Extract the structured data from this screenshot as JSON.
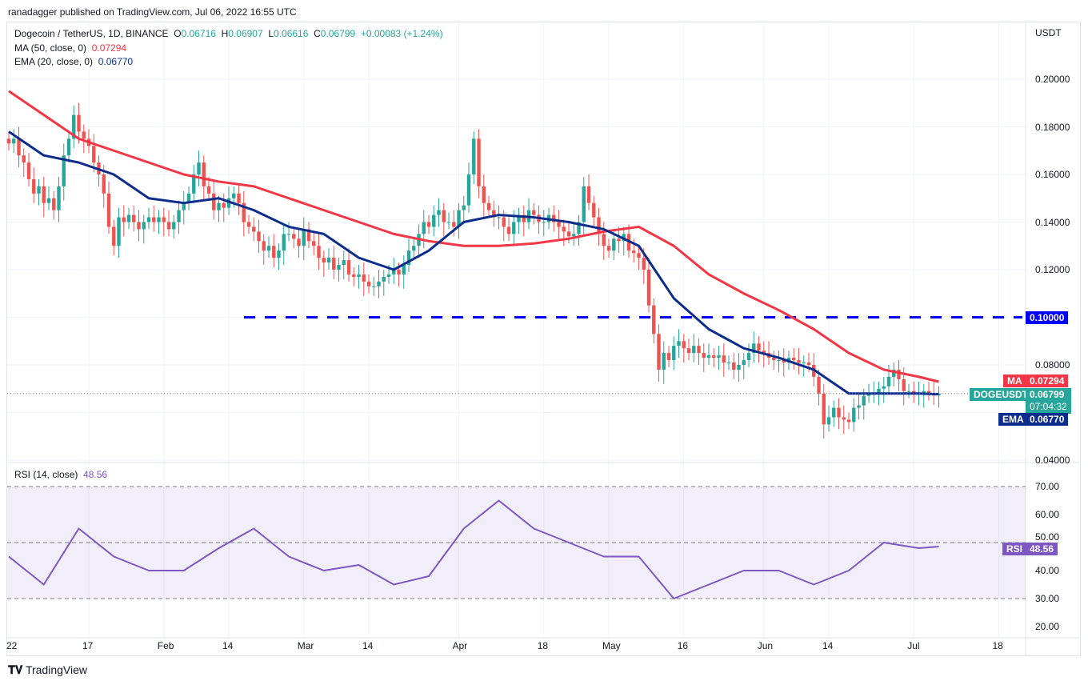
{
  "header": {
    "published": "ranadagger published on TradingView.com, Jul 06, 2022 16:55 UTC"
  },
  "legend": {
    "symbol": "Dogecoin / TetherUS, 1D, BINANCE",
    "o_label": "O",
    "o": "0.06716",
    "h_label": "H",
    "h": "0.06907",
    "l_label": "L",
    "l": "0.06616",
    "c_label": "C",
    "c": "0.06799",
    "change": "+0.00083 (+1.24%)",
    "ma_label": "MA (50, close, 0)",
    "ma_value": "0.07294",
    "ema_label": "EMA (20, close, 0)",
    "ema_value": "0.06770",
    "rsi_label": "RSI (14, close)",
    "rsi_value": "48.56"
  },
  "price_axis": {
    "currency": "USDT",
    "ticks": [
      "0.20000",
      "0.18000",
      "0.16000",
      "0.14000",
      "0.12000",
      "0.10000",
      "0.08000",
      "0.04000"
    ]
  },
  "right_labels": {
    "level": "0.10000",
    "ma_tag": "MA",
    "ma": "0.07294",
    "symbol_tag": "DOGEUSDT",
    "price": "0.06799",
    "countdown": "07:04:32",
    "ema_tag": "EMA",
    "ema": "0.06770",
    "rsi_tag": "RSI",
    "rsi": "48.56"
  },
  "rsi_axis": {
    "ticks": [
      "70.00",
      "60.00",
      "50.00",
      "40.00",
      "30.00",
      "20.00"
    ]
  },
  "time_axis": {
    "labels": [
      "22",
      "17",
      "Feb",
      "14",
      "Mar",
      "14",
      "Apr",
      "18",
      "May",
      "16",
      "Jun",
      "14",
      "Jul",
      "18"
    ]
  },
  "footer": {
    "brand": "TradingView"
  },
  "colors": {
    "up": "#26a69a",
    "down": "#ef5350",
    "ma": "#f23645",
    "ema": "#0d2d8c",
    "level": "#0000ff",
    "rsi": "#7e57c2"
  },
  "chart_data": {
    "type": "candlestick",
    "title": "Dogecoin / TetherUS, 1D, BINANCE",
    "x_start": "2022-01-01",
    "x_step": "1D",
    "ylim": [
      0.04,
      0.21
    ],
    "level_line": 0.1,
    "close": [
      0.173,
      0.175,
      0.168,
      0.165,
      0.158,
      0.152,
      0.155,
      0.148,
      0.15,
      0.145,
      0.155,
      0.168,
      0.175,
      0.185,
      0.178,
      0.175,
      0.172,
      0.165,
      0.16,
      0.152,
      0.138,
      0.13,
      0.142,
      0.14,
      0.143,
      0.14,
      0.137,
      0.14,
      0.142,
      0.14,
      0.142,
      0.14,
      0.137,
      0.14,
      0.145,
      0.148,
      0.152,
      0.16,
      0.165,
      0.155,
      0.152,
      0.145,
      0.148,
      0.146,
      0.15,
      0.152,
      0.148,
      0.14,
      0.138,
      0.136,
      0.132,
      0.128,
      0.13,
      0.125,
      0.128,
      0.135,
      0.135,
      0.133,
      0.13,
      0.137,
      0.132,
      0.13,
      0.125,
      0.123,
      0.125,
      0.12,
      0.122,
      0.124,
      0.118,
      0.117,
      0.118,
      0.115,
      0.113,
      0.113,
      0.115,
      0.117,
      0.118,
      0.12,
      0.118,
      0.122,
      0.128,
      0.13,
      0.135,
      0.14,
      0.138,
      0.143,
      0.145,
      0.14,
      0.14,
      0.138,
      0.145,
      0.147,
      0.16,
      0.175,
      0.155,
      0.148,
      0.145,
      0.142,
      0.142,
      0.138,
      0.135,
      0.14,
      0.143,
      0.14,
      0.145,
      0.143,
      0.14,
      0.14,
      0.143,
      0.14,
      0.138,
      0.136,
      0.134,
      0.135,
      0.14,
      0.155,
      0.148,
      0.142,
      0.135,
      0.13,
      0.128,
      0.133,
      0.132,
      0.135,
      0.128,
      0.127,
      0.125,
      0.12,
      0.105,
      0.093,
      0.078,
      0.085,
      0.082,
      0.088,
      0.09,
      0.087,
      0.085,
      0.088,
      0.085,
      0.083,
      0.084,
      0.083,
      0.084,
      0.081,
      0.081,
      0.078,
      0.08,
      0.082,
      0.085,
      0.089,
      0.086,
      0.085,
      0.083,
      0.082,
      0.082,
      0.081,
      0.083,
      0.082,
      0.081,
      0.081,
      0.08,
      0.075,
      0.068,
      0.055,
      0.058,
      0.062,
      0.058,
      0.057,
      0.056,
      0.062,
      0.063,
      0.067,
      0.068,
      0.068,
      0.07,
      0.071,
      0.075,
      0.078,
      0.074,
      0.069,
      0.069,
      0.068,
      0.068,
      0.069,
      0.068,
      0.06716,
      0.06799
    ],
    "ma50_weekly": [
      0.195,
      0.185,
      0.175,
      0.17,
      0.165,
      0.16,
      0.157,
      0.155,
      0.15,
      0.145,
      0.14,
      0.135,
      0.132,
      0.13,
      0.13,
      0.131,
      0.133,
      0.136,
      0.138,
      0.13,
      0.118,
      0.11,
      0.103,
      0.095,
      0.085,
      0.078,
      0.075,
      0.07294
    ],
    "ema20_weekly": [
      0.178,
      0.168,
      0.165,
      0.16,
      0.15,
      0.148,
      0.15,
      0.145,
      0.138,
      0.135,
      0.125,
      0.12,
      0.128,
      0.14,
      0.143,
      0.142,
      0.14,
      0.137,
      0.13,
      0.108,
      0.095,
      0.087,
      0.083,
      0.078,
      0.068,
      0.068,
      0.068,
      0.0677
    ],
    "rsi_weekly": [
      45,
      35,
      55,
      45,
      40,
      40,
      48,
      55,
      45,
      40,
      42,
      35,
      38,
      55,
      65,
      55,
      50,
      45,
      45,
      30,
      35,
      40,
      40,
      35,
      40,
      50,
      48,
      48.56
    ],
    "rsi_ylim": [
      15,
      75
    ]
  }
}
